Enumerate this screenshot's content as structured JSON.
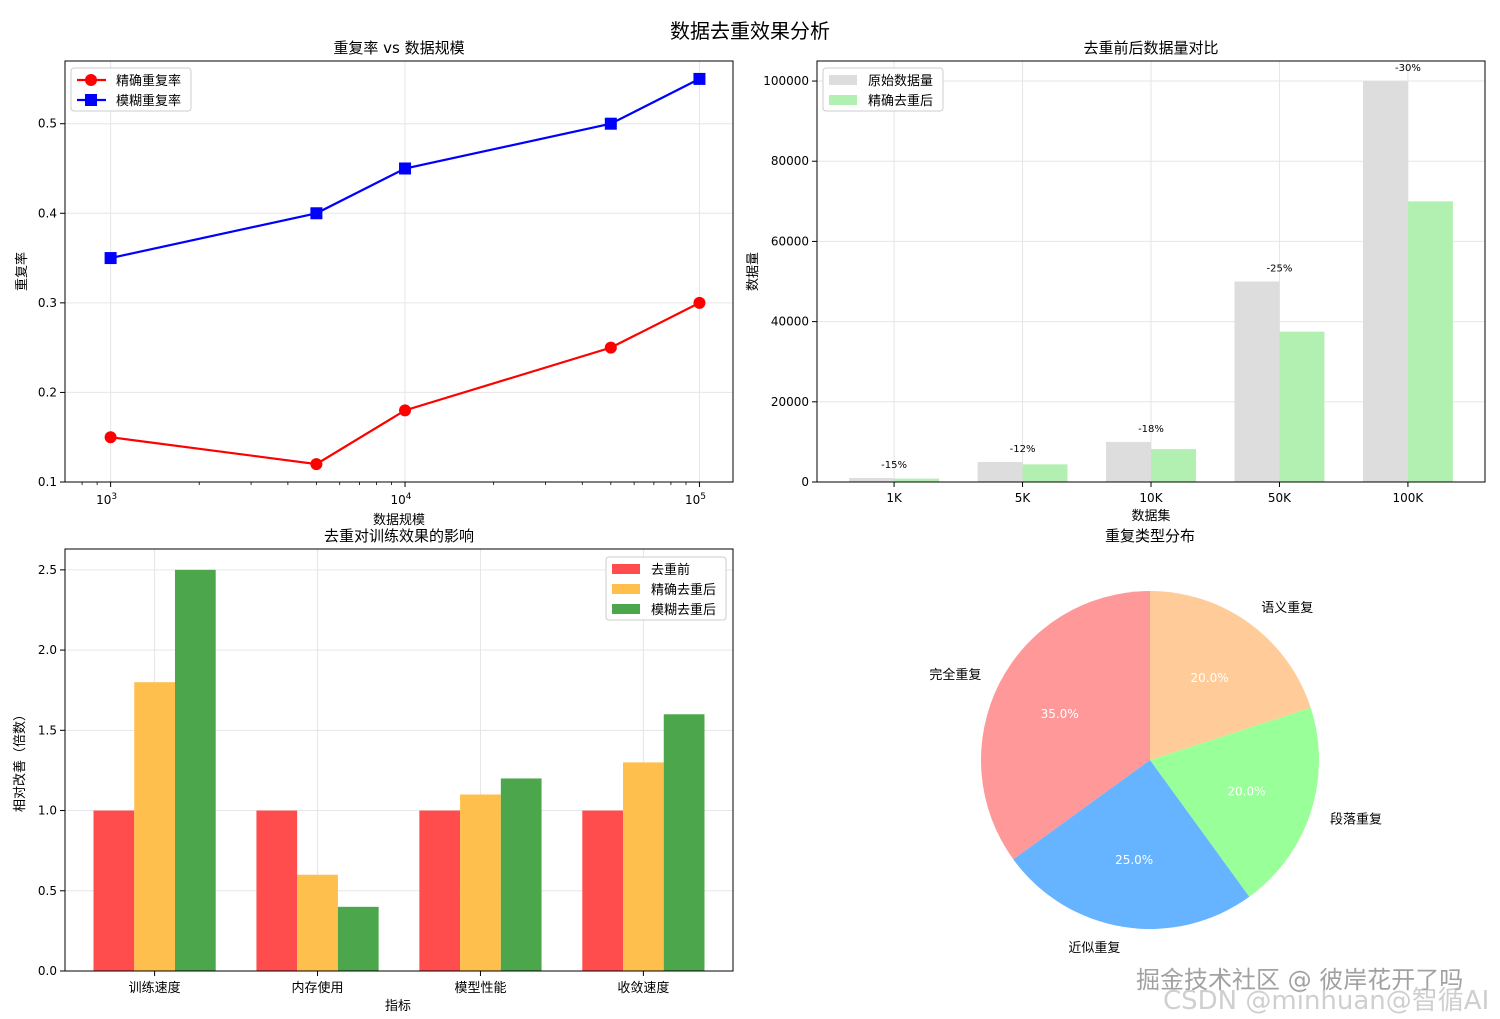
{
  "figure_title": "数据去重效果分析",
  "watermark_primary": "掘金技术社区 @ 彼岸花开了吗",
  "watermark_secondary": "CSDN @minhuan@智循AI",
  "chart_data": [
    {
      "type": "line",
      "title": "重复率 vs 数据规模",
      "xlabel": "数据规模",
      "ylabel": "重复率",
      "xscale": "log",
      "xlim": [
        700,
        130000
      ],
      "ylim": [
        0.1,
        0.57
      ],
      "x_ticks": [
        1000,
        10000,
        100000
      ],
      "x_tick_labels": [
        {
          "base": "10",
          "exp": "3"
        },
        {
          "base": "10",
          "exp": "4"
        },
        {
          "base": "10",
          "exp": "5"
        }
      ],
      "y_ticks": [
        0.1,
        0.2,
        0.3,
        0.4,
        0.5
      ],
      "y_tick_labels": [
        "0.1",
        "0.2",
        "0.3",
        "0.4",
        "0.5"
      ],
      "grid": true,
      "legend_position": "top-left",
      "x": [
        1000,
        5000,
        10000,
        50000,
        100000
      ],
      "series": [
        {
          "name": "精确重复率",
          "color": "#ff0000",
          "marker": "circle",
          "values": [
            0.15,
            0.12,
            0.18,
            0.25,
            0.3
          ]
        },
        {
          "name": "模糊重复率",
          "color": "#0000ff",
          "marker": "square",
          "values": [
            0.35,
            0.4,
            0.45,
            0.5,
            0.55
          ]
        }
      ]
    },
    {
      "type": "bar",
      "title": "去重前后数据量对比",
      "xlabel": "数据集",
      "ylabel": "数据量",
      "categories": [
        "1K",
        "5K",
        "10K",
        "50K",
        "100K"
      ],
      "ylim": [
        0,
        105000
      ],
      "y_ticks": [
        0,
        20000,
        40000,
        60000,
        80000,
        100000
      ],
      "y_tick_labels": [
        "0",
        "20000",
        "40000",
        "60000",
        "80000",
        "100000"
      ],
      "grid": true,
      "legend_position": "top-left",
      "series": [
        {
          "name": "原始数据量",
          "color": "#dddddd",
          "values": [
            1000,
            5000,
            10000,
            50000,
            100000
          ]
        },
        {
          "name": "精确去重后",
          "color": "#b1f0b1",
          "values": [
            850,
            4400,
            8200,
            37500,
            70000
          ]
        }
      ],
      "annotations": [
        "-15%",
        "-12%",
        "-18%",
        "-25%",
        "-30%"
      ]
    },
    {
      "type": "bar",
      "title": "去重对训练效果的影响",
      "xlabel": "指标",
      "ylabel": "相对改善（倍数）",
      "categories": [
        "训练速度",
        "内存使用",
        "模型性能",
        "收敛速度"
      ],
      "ylim": [
        0,
        2.63
      ],
      "y_ticks": [
        0.0,
        0.5,
        1.0,
        1.5,
        2.0,
        2.5
      ],
      "y_tick_labels": [
        "0.0",
        "0.5",
        "1.0",
        "1.5",
        "2.0",
        "2.5"
      ],
      "grid": true,
      "legend_position": "top-right",
      "series": [
        {
          "name": "去重前",
          "color": "#ff4c4c",
          "values": [
            1.0,
            1.0,
            1.0,
            1.0
          ]
        },
        {
          "name": "精确去重后",
          "color": "#ffbf4c",
          "values": [
            1.8,
            0.6,
            1.1,
            1.3
          ]
        },
        {
          "name": "模糊去重后",
          "color": "#4ca64c",
          "values": [
            2.5,
            0.4,
            1.2,
            1.6
          ]
        }
      ]
    },
    {
      "type": "pie",
      "title": "重复类型分布",
      "start_angle_deg": 90,
      "direction": "counterclockwise",
      "labels": [
        "完全重复",
        "近似重复",
        "段落重复",
        "语义重复"
      ],
      "values": [
        35.0,
        25.0,
        20.0,
        20.0
      ],
      "pct_labels": [
        "35.0%",
        "25.0%",
        "20.0%",
        "20.0%"
      ],
      "colors": [
        "#ff9999",
        "#66b3ff",
        "#99ff99",
        "#ffcc99"
      ]
    }
  ]
}
